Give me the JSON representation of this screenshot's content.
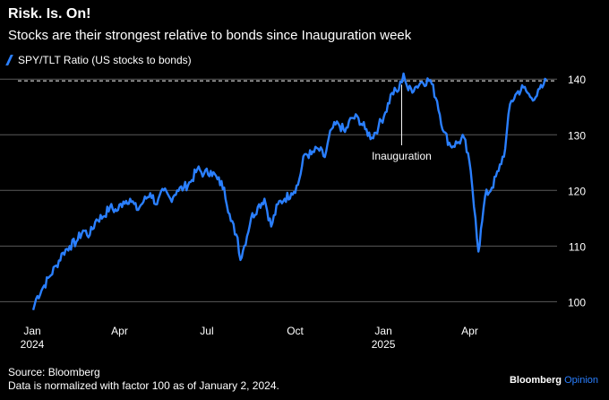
{
  "header": {
    "title": "Risk. Is. On!",
    "subtitle": "Stocks are their strongest relative to bonds since Inauguration week"
  },
  "footer": {
    "source": "Source: Bloomberg",
    "note": "Data is normalized with factor 100 as of January 2, 2024.",
    "brand_name": "Bloomberg",
    "brand_suffix": "Opinion"
  },
  "colors": {
    "line": "#2a7fff",
    "grid": "#5a5a5a",
    "background": "#000000",
    "text": "#ffffff"
  },
  "chart_data": {
    "type": "line",
    "title": "Risk. Is. On!",
    "subtitle": "Stocks are their strongest relative to bonds since Inauguration week",
    "ylabel": "",
    "xlabel": "",
    "ylim": [
      97,
      141
    ],
    "x_range": [
      "2024-01-02",
      "2025-06-20"
    ],
    "grid": "horizontal",
    "legend_position": "top-left",
    "y_ticks": [
      100,
      110,
      120,
      130,
      140
    ],
    "x_ticks": [
      {
        "date": "2024-01-01",
        "label": "Jan",
        "sub": "2024"
      },
      {
        "date": "2024-04-01",
        "label": "Apr",
        "sub": ""
      },
      {
        "date": "2024-07-01",
        "label": "Jul",
        "sub": ""
      },
      {
        "date": "2024-10-01",
        "label": "Oct",
        "sub": ""
      },
      {
        "date": "2025-01-01",
        "label": "Jan",
        "sub": "2025"
      },
      {
        "date": "2025-04-01",
        "label": "Apr",
        "sub": ""
      }
    ],
    "reference_line": {
      "value": 139.7,
      "style": "dashed"
    },
    "annotation": {
      "label": "Inauguration",
      "date": "2025-01-20",
      "value": 139
    },
    "series": [
      {
        "name": "SPY/TLT Ratio (US stocks to bonds)",
        "points": [
          [
            "2024-01-02",
            98.5
          ],
          [
            "2024-01-05",
            100.5
          ],
          [
            "2024-01-12",
            102.5
          ],
          [
            "2024-01-19",
            104.5
          ],
          [
            "2024-01-26",
            106.5
          ],
          [
            "2024-02-02",
            108.8
          ],
          [
            "2024-02-09",
            110.0
          ],
          [
            "2024-02-16",
            110.8
          ],
          [
            "2024-02-23",
            112.8
          ],
          [
            "2024-03-01",
            112.0
          ],
          [
            "2024-03-08",
            114.8
          ],
          [
            "2024-03-15",
            115.3
          ],
          [
            "2024-03-22",
            117.0
          ],
          [
            "2024-03-29",
            116.3
          ],
          [
            "2024-04-05",
            118.0
          ],
          [
            "2024-04-12",
            118.5
          ],
          [
            "2024-04-19",
            116.5
          ],
          [
            "2024-04-26",
            118.0
          ],
          [
            "2024-05-03",
            119.5
          ],
          [
            "2024-05-10",
            117.5
          ],
          [
            "2024-05-17",
            120.0
          ],
          [
            "2024-05-24",
            118.5
          ],
          [
            "2024-05-31",
            120.0
          ],
          [
            "2024-06-07",
            120.5
          ],
          [
            "2024-06-14",
            121.5
          ],
          [
            "2024-06-21",
            123.8
          ],
          [
            "2024-06-28",
            123.0
          ],
          [
            "2024-07-05",
            123.5
          ],
          [
            "2024-07-12",
            122.0
          ],
          [
            "2024-07-19",
            120.5
          ],
          [
            "2024-07-26",
            114.5
          ],
          [
            "2024-08-02",
            111.5
          ],
          [
            "2024-08-05",
            107.5
          ],
          [
            "2024-08-09",
            110.0
          ],
          [
            "2024-08-16",
            115.0
          ],
          [
            "2024-08-23",
            117.0
          ],
          [
            "2024-08-30",
            118.5
          ],
          [
            "2024-09-06",
            113.5
          ],
          [
            "2024-09-13",
            117.5
          ],
          [
            "2024-09-20",
            118.5
          ],
          [
            "2024-09-27",
            119.5
          ],
          [
            "2024-10-04",
            121.0
          ],
          [
            "2024-10-11",
            126.5
          ],
          [
            "2024-10-18",
            126.5
          ],
          [
            "2024-10-25",
            127.5
          ],
          [
            "2024-11-01",
            126.0
          ],
          [
            "2024-11-08",
            131.0
          ],
          [
            "2024-11-15",
            132.0
          ],
          [
            "2024-11-22",
            130.5
          ],
          [
            "2024-11-29",
            133.0
          ],
          [
            "2024-12-06",
            133.0
          ],
          [
            "2024-12-13",
            131.0
          ],
          [
            "2024-12-20",
            129.5
          ],
          [
            "2024-12-27",
            131.5
          ],
          [
            "2025-01-03",
            134.0
          ],
          [
            "2025-01-10",
            137.5
          ],
          [
            "2025-01-17",
            138.0
          ],
          [
            "2025-01-22",
            141.0
          ],
          [
            "2025-01-27",
            138.0
          ],
          [
            "2025-02-03",
            138.5
          ],
          [
            "2025-02-10",
            139.5
          ],
          [
            "2025-02-19",
            139.8
          ],
          [
            "2025-02-26",
            136.0
          ],
          [
            "2025-03-05",
            130.5
          ],
          [
            "2025-03-12",
            128.0
          ],
          [
            "2025-03-19",
            128.5
          ],
          [
            "2025-03-26",
            129.5
          ],
          [
            "2025-04-02",
            123.5
          ],
          [
            "2025-04-07",
            115.0
          ],
          [
            "2025-04-10",
            109.0
          ],
          [
            "2025-04-14",
            114.5
          ],
          [
            "2025-04-17",
            119.0
          ],
          [
            "2025-04-24",
            120.5
          ],
          [
            "2025-05-01",
            123.5
          ],
          [
            "2025-05-08",
            127.5
          ],
          [
            "2025-05-13",
            135.5
          ],
          [
            "2025-05-20",
            137.5
          ],
          [
            "2025-05-27",
            138.5
          ],
          [
            "2025-06-03",
            136.8
          ],
          [
            "2025-06-10",
            137.0
          ],
          [
            "2025-06-17",
            139.0
          ],
          [
            "2025-06-20",
            139.8
          ]
        ]
      }
    ]
  }
}
